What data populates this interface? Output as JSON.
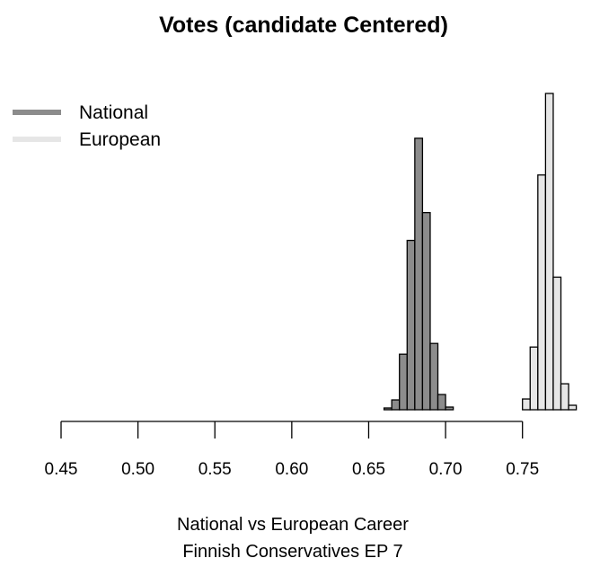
{
  "chart_data": {
    "type": "histogram",
    "title": "Votes (candidate Centered)",
    "xlabel_lines": [
      "National vs European Career",
      "Finnish Conservatives EP 7"
    ],
    "xlim": [
      0.45,
      0.8
    ],
    "x_ticks": [
      0.45,
      0.5,
      0.55,
      0.6,
      0.65,
      0.7,
      0.75
    ],
    "x_tick_labels": [
      "0.45",
      "0.50",
      "0.55",
      "0.60",
      "0.65",
      "0.70",
      "0.75"
    ],
    "bin_width": 0.005,
    "y_axis_drawn": false,
    "legend_position": "top-left",
    "series": [
      {
        "name": "National",
        "color": "#8c8c8c",
        "bins": [
          {
            "x0": 0.65,
            "count": 0
          },
          {
            "x0": 0.655,
            "count": 0
          },
          {
            "x0": 0.66,
            "count": 2
          },
          {
            "x0": 0.665,
            "count": 11
          },
          {
            "x0": 0.67,
            "count": 62
          },
          {
            "x0": 0.675,
            "count": 189
          },
          {
            "x0": 0.68,
            "count": 303
          },
          {
            "x0": 0.685,
            "count": 220
          },
          {
            "x0": 0.69,
            "count": 74
          },
          {
            "x0": 0.695,
            "count": 17
          },
          {
            "x0": 0.7,
            "count": 3
          },
          {
            "x0": 0.705,
            "count": 0
          },
          {
            "x0": 0.71,
            "count": 0
          }
        ]
      },
      {
        "name": "European",
        "color": "#e6e6e6",
        "bins": [
          {
            "x0": 0.74,
            "count": 0
          },
          {
            "x0": 0.745,
            "count": 0
          },
          {
            "x0": 0.75,
            "count": 12
          },
          {
            "x0": 0.755,
            "count": 70
          },
          {
            "x0": 0.76,
            "count": 262
          },
          {
            "x0": 0.765,
            "count": 353
          },
          {
            "x0": 0.77,
            "count": 148
          },
          {
            "x0": 0.775,
            "count": 29
          },
          {
            "x0": 0.78,
            "count": 5
          },
          {
            "x0": 0.785,
            "count": 0
          }
        ]
      }
    ]
  }
}
